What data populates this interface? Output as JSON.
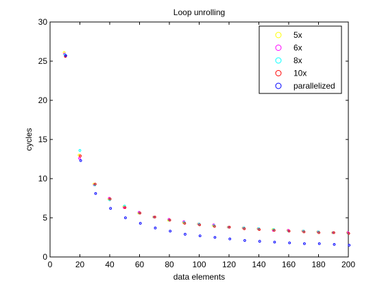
{
  "chart_data": {
    "type": "scatter",
    "title": "Loop unrolling",
    "xlabel": "data elements",
    "ylabel": "cycles",
    "xlim": [
      0,
      200
    ],
    "ylim": [
      0,
      30
    ],
    "xticks": [
      0,
      20,
      40,
      60,
      80,
      100,
      120,
      140,
      160,
      180,
      200
    ],
    "yticks": [
      0,
      5,
      10,
      15,
      20,
      25,
      30
    ],
    "grid": false,
    "legend_position": "top-right",
    "x": [
      10,
      20,
      30,
      40,
      50,
      60,
      70,
      80,
      90,
      100,
      110,
      120,
      130,
      140,
      150,
      160,
      170,
      180,
      190,
      200
    ],
    "series": [
      {
        "name": "5x",
        "color": "#ffff00",
        "values": [
          26.1,
          13.0,
          9.3,
          7.4,
          6.4,
          5.6,
          5.1,
          4.7,
          4.4,
          4.2,
          4.0,
          3.8,
          3.7,
          3.6,
          3.5,
          3.4,
          3.3,
          3.2,
          3.1,
          3.1
        ]
      },
      {
        "name": "6x",
        "color": "#ff00ff",
        "values": [
          25.9,
          12.6,
          9.2,
          7.5,
          6.3,
          5.7,
          5.1,
          4.8,
          4.5,
          4.2,
          4.1,
          3.8,
          3.7,
          3.6,
          3.4,
          3.4,
          3.3,
          3.2,
          3.1,
          3.1
        ]
      },
      {
        "name": "8x",
        "color": "#00ffff",
        "values": [
          25.8,
          13.6,
          9.2,
          7.3,
          6.5,
          5.6,
          5.1,
          4.7,
          4.4,
          4.2,
          4.0,
          3.8,
          3.7,
          3.6,
          3.5,
          3.3,
          3.3,
          3.2,
          3.1,
          3.0
        ]
      },
      {
        "name": "10x",
        "color": "#ff0000",
        "values": [
          25.6,
          12.9,
          9.3,
          7.4,
          6.3,
          5.6,
          5.1,
          4.7,
          4.3,
          4.1,
          3.9,
          3.8,
          3.6,
          3.5,
          3.4,
          3.3,
          3.2,
          3.1,
          3.1,
          3.0
        ]
      },
      {
        "name": "parallelized",
        "color": "#0000ff",
        "values": [
          25.7,
          12.3,
          8.1,
          6.2,
          5.0,
          4.3,
          3.7,
          3.3,
          2.9,
          2.7,
          2.5,
          2.3,
          2.1,
          2.0,
          1.9,
          1.8,
          1.7,
          1.7,
          1.6,
          1.5
        ]
      }
    ]
  }
}
